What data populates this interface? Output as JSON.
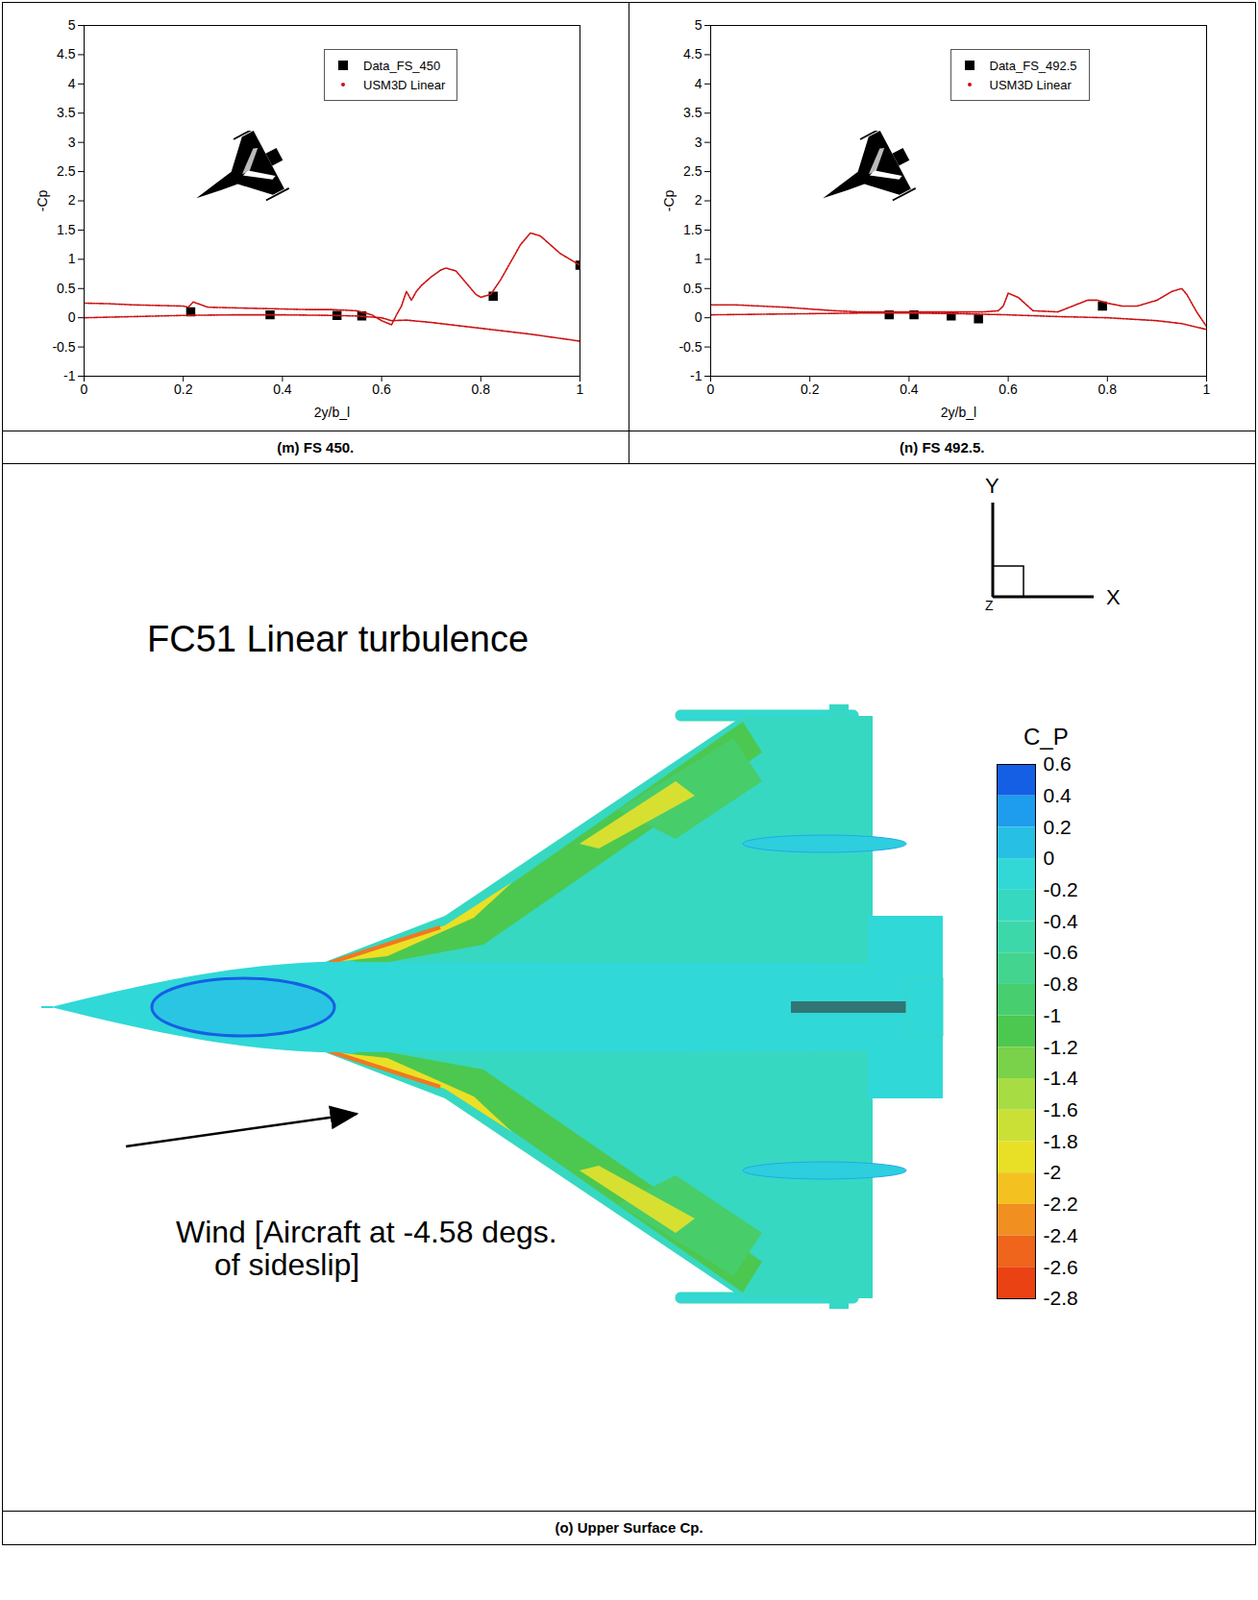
{
  "chart_data": [
    {
      "type": "line",
      "caption": "(m) FS 450.",
      "x_label": "2y/b_l",
      "y_label": "-Cp",
      "xlim": [
        0,
        1
      ],
      "xticks": [
        0,
        0.2,
        0.4,
        0.6,
        0.8,
        1
      ],
      "ylim": [
        -1,
        5
      ],
      "yticks": [
        -1,
        -0.5,
        0,
        0.5,
        1,
        1.5,
        2,
        2.5,
        3,
        3.5,
        4,
        4.5,
        5
      ],
      "legend": "top-right",
      "series": [
        {
          "name": "Data_FS_450",
          "type": "scatter",
          "marker": "square",
          "color": "#000000",
          "x": [
            0.215,
            0.375,
            0.51,
            0.56,
            0.825,
            1.0
          ],
          "values": [
            0.1,
            0.05,
            0.04,
            0.03,
            0.37,
            0.9
          ]
        },
        {
          "name": "USM3D Linear",
          "type": "line",
          "marker": "dot",
          "line_style": "dotted",
          "color": "#cc1111",
          "x": [
            0,
            0.05,
            0.1,
            0.15,
            0.2,
            0.21,
            0.22,
            0.25,
            0.3,
            0.35,
            0.4,
            0.45,
            0.5,
            0.55,
            0.58,
            0.6,
            0.62,
            0.63,
            0.64,
            0.65,
            0.66,
            0.67,
            0.68,
            0.7,
            0.72,
            0.73,
            0.75,
            0.77,
            0.79,
            0.8,
            0.82,
            0.84,
            0.86,
            0.88,
            0.9,
            0.92,
            0.94,
            0.96,
            0.98,
            1.0,
            null,
            0,
            0.1,
            0.2,
            0.3,
            0.4,
            0.5,
            0.55,
            0.6,
            0.62,
            0.65,
            0.7,
            0.8,
            0.9,
            1.0
          ],
          "values": [
            0.25,
            0.24,
            0.22,
            0.21,
            0.2,
            0.18,
            0.27,
            0.18,
            0.17,
            0.16,
            0.15,
            0.14,
            0.14,
            0.12,
            0.05,
            -0.05,
            -0.12,
            0.05,
            0.2,
            0.45,
            0.3,
            0.45,
            0.55,
            0.7,
            0.82,
            0.85,
            0.8,
            0.6,
            0.4,
            0.35,
            0.4,
            0.65,
            0.95,
            1.25,
            1.45,
            1.4,
            1.25,
            1.1,
            1.0,
            0.9,
            null,
            0,
            0.02,
            0.04,
            0.05,
            0.05,
            0.04,
            0.03,
            0,
            -0.05,
            -0.04,
            -0.08,
            -0.18,
            -0.28,
            -0.4
          ]
        }
      ]
    },
    {
      "type": "line",
      "caption": "(n) FS 492.5.",
      "x_label": "2y/b_l",
      "y_label": "-Cp",
      "xlim": [
        0,
        1
      ],
      "xticks": [
        0,
        0.2,
        0.4,
        0.6,
        0.8,
        1
      ],
      "ylim": [
        -1,
        5
      ],
      "yticks": [
        -1,
        -0.5,
        0,
        0.5,
        1,
        1.5,
        2,
        2.5,
        3,
        3.5,
        4,
        4.5,
        5
      ],
      "legend": "top-right",
      "series": [
        {
          "name": "Data_FS_492.5",
          "type": "scatter",
          "marker": "square",
          "color": "#000000",
          "x": [
            0.36,
            0.41,
            0.485,
            0.54,
            0.79
          ],
          "values": [
            0.05,
            0.05,
            0.03,
            -0.02,
            0.2
          ]
        },
        {
          "name": "USM3D Linear",
          "type": "line",
          "marker": "dot",
          "line_style": "dotted",
          "color": "#cc1111",
          "x": [
            0,
            0.05,
            0.1,
            0.15,
            0.2,
            0.25,
            0.3,
            0.4,
            0.5,
            0.55,
            0.58,
            0.59,
            0.6,
            0.62,
            0.65,
            0.7,
            0.73,
            0.76,
            0.78,
            0.8,
            0.83,
            0.86,
            0.9,
            0.93,
            0.95,
            0.96,
            0.98,
            1.0,
            null,
            0,
            0.1,
            0.2,
            0.3,
            0.4,
            0.5,
            0.6,
            0.7,
            0.8,
            0.9,
            0.95,
            1.0
          ],
          "values": [
            0.22,
            0.22,
            0.2,
            0.18,
            0.15,
            0.12,
            0.1,
            0.1,
            0.1,
            0.1,
            0.12,
            0.2,
            0.42,
            0.35,
            0.12,
            0.1,
            0.2,
            0.3,
            0.3,
            0.25,
            0.2,
            0.2,
            0.3,
            0.45,
            0.5,
            0.4,
            0.1,
            -0.15,
            null,
            0.05,
            0.06,
            0.07,
            0.08,
            0.08,
            0.07,
            0.05,
            0.02,
            0,
            -0.05,
            -0.1,
            -0.2
          ]
        }
      ]
    },
    {
      "type": "contour",
      "caption": "(o) Upper Surface Cp.",
      "title": "FC51 Linear turbulence",
      "annotation": "Wind [Aircraft at -4.58 degs. of sideslip]",
      "axis_labels": [
        "Y",
        "X",
        "Z"
      ],
      "colorbar_label": "C_P",
      "colorbar_range": [
        -2.8,
        0.6
      ],
      "colorbar_ticks": [
        0.6,
        0.4,
        0.2,
        0,
        -0.2,
        -0.4,
        -0.6,
        -0.8,
        -1,
        -1.2,
        -1.4,
        -1.6,
        -1.8,
        -2,
        -2.2,
        -2.4,
        -2.6,
        -2.8
      ]
    }
  ]
}
